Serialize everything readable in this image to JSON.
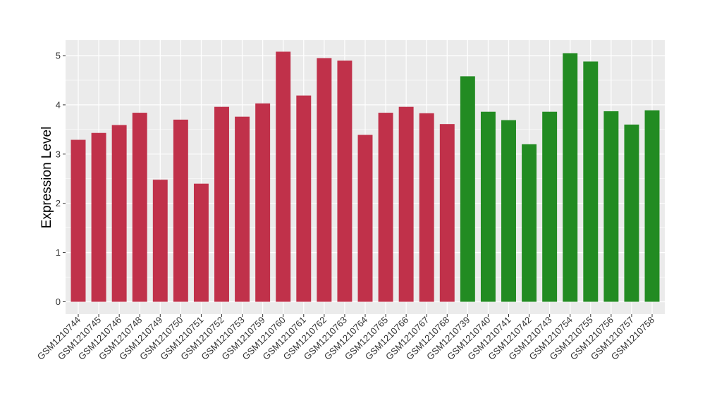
{
  "chart_data": {
    "type": "bar",
    "ylabel": "Expression Level",
    "xlabel": "",
    "title": "",
    "ylim": [
      -0.3,
      5.3
    ],
    "yticks": [
      0,
      1,
      2,
      3,
      4,
      5
    ],
    "grid": true,
    "categories": [
      "GSM1210744",
      "GSM1210745",
      "GSM1210746",
      "GSM1210748",
      "GSM1210749",
      "GSM1210750",
      "GSM1210751",
      "GSM1210752",
      "GSM1210753",
      "GSM1210759",
      "GSM1210760",
      "GSM1210761",
      "GSM1210762",
      "GSM1210763",
      "GSM1210764",
      "GSM1210765",
      "GSM1210766",
      "GSM1210767",
      "GSM1210768",
      "GSM1210739",
      "GSM1210740",
      "GSM1210741",
      "GSM1210742",
      "GSM1210743",
      "GSM1210754",
      "GSM1210755",
      "GSM1210756",
      "GSM1210757",
      "GSM1210758"
    ],
    "values": [
      3.29,
      3.43,
      3.59,
      3.84,
      2.48,
      3.7,
      2.4,
      3.96,
      3.76,
      4.03,
      5.08,
      4.19,
      4.95,
      4.9,
      3.39,
      3.84,
      3.96,
      3.83,
      3.61,
      4.58,
      3.86,
      3.69,
      3.2,
      3.86,
      5.05,
      4.88,
      3.87,
      3.6,
      3.89
    ],
    "bar_colors": [
      "#c0314a",
      "#c0314a",
      "#c0314a",
      "#c0314a",
      "#c0314a",
      "#c0314a",
      "#c0314a",
      "#c0314a",
      "#c0314a",
      "#c0314a",
      "#c0314a",
      "#c0314a",
      "#c0314a",
      "#c0314a",
      "#c0314a",
      "#c0314a",
      "#c0314a",
      "#c0314a",
      "#c0314a",
      "#228b22",
      "#228b22",
      "#228b22",
      "#228b22",
      "#228b22",
      "#228b22",
      "#228b22",
      "#228b22",
      "#228b22",
      "#228b22"
    ],
    "colors": {
      "panel_background": "#ebebeb",
      "grid": "#ffffff",
      "group_red": "#c0314a",
      "group_green": "#228b22"
    }
  }
}
